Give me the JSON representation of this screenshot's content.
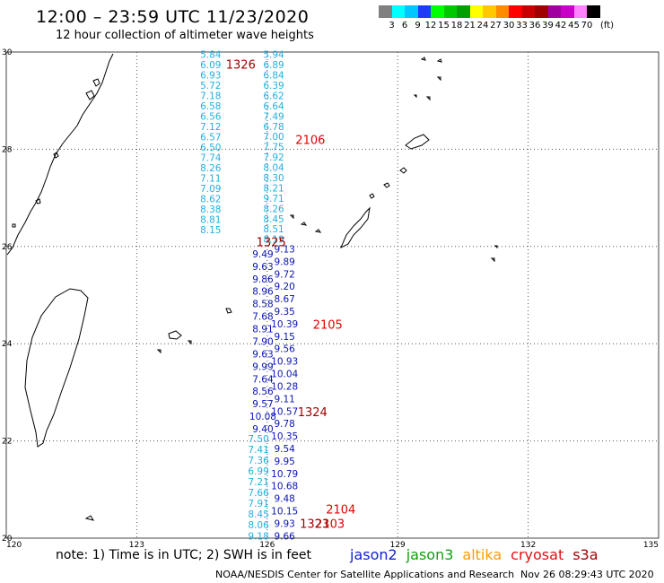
{
  "title": "12:00 – 23:59 UTC 11/23/2020",
  "subtitle": "12 hour collection of altimeter wave heights",
  "legend": {
    "colors": [
      "#808080",
      "#00ffff",
      "#00c8ff",
      "#1e3cff",
      "#00ff00",
      "#00c800",
      "#00a000",
      "#ffff00",
      "#ffc800",
      "#ff8c00",
      "#ff0000",
      "#c80000",
      "#a00000",
      "#a000a0",
      "#c800c8",
      "#ff82ff",
      "#000000"
    ],
    "labels": [
      "3",
      "6",
      "9",
      "12",
      "15",
      "18",
      "21",
      "24",
      "27",
      "30",
      "33",
      "36",
      "39",
      "42",
      "45",
      "70"
    ],
    "unit": "(ft)"
  },
  "axes": {
    "lon_ticks": [
      "120",
      "123",
      "126",
      "129",
      "132",
      "135"
    ],
    "lat_ticks": [
      "30",
      "28",
      "26",
      "24",
      "22",
      "20"
    ]
  },
  "tracks": [
    {
      "color": "#22b0e0",
      "lon": 124.7,
      "lat0": 29.95,
      "lat1": 26.35,
      "values": [
        "5.84",
        "6.09",
        "6.93",
        "5.72",
        "7.18",
        "6.58",
        "6.56",
        "7.12",
        "6.57",
        "6.50",
        "7.74",
        "8.26",
        "7.11",
        "7.09",
        "8.62",
        "8.38",
        "8.81",
        "8.15"
      ]
    },
    {
      "color": "#22b0e0",
      "lon": 126.15,
      "lat0": 29.95,
      "lat1": 26.15,
      "values": [
        "5.94",
        "6.89",
        "6.84",
        "6.39",
        "6.62",
        "6.64",
        "7.49",
        "6.78",
        "7.00",
        "7.75",
        "7.92",
        "8.04",
        "8.30",
        "8.21",
        "9.71",
        "8.26",
        "8.45",
        "8.51",
        "8.19"
      ]
    },
    {
      "color": "#0a14b4",
      "lon": 125.9,
      "lat0": 25.85,
      "lat1": 22.25,
      "values": [
        "9.49",
        "9.63",
        "9.86",
        "8.96",
        "8.58",
        "7.68",
        "8.91",
        "7.90",
        "9.63",
        "9.99",
        "7.64",
        "8.56",
        "9.57",
        "10.08",
        "9.40"
      ]
    },
    {
      "color": "#0a14b4",
      "lon": 126.4,
      "lat0": 25.95,
      "lat1": 20.05,
      "values": [
        "9.13",
        "9.89",
        "9.72",
        "9.20",
        "8.67",
        "9.35",
        "10.39",
        "9.15",
        "9.56",
        "10.93",
        "10.04",
        "10.28",
        "9.11",
        "10.57",
        "9.78",
        "10.35",
        "9.54",
        "9.95",
        "10.79",
        "10.68",
        "9.48",
        "10.15",
        "9.93",
        "9.66"
      ]
    },
    {
      "color": "#22b0e0",
      "lon": 125.8,
      "lat0": 22.05,
      "lat1": 20.05,
      "values": [
        "7.50",
        "7.41",
        "7.36",
        "6.99",
        "7.21",
        "7.66",
        "7.91",
        "8.45",
        "8.06",
        "9.18"
      ]
    }
  ],
  "passes": [
    {
      "label": "1326",
      "color": "#a00000",
      "lon": 125.05,
      "lat": 29.75
    },
    {
      "label": "2106",
      "color": "#e00000",
      "lon": 126.65,
      "lat": 28.2
    },
    {
      "label": "1325",
      "color": "#a00000",
      "lon": 125.75,
      "lat": 26.1
    },
    {
      "label": "2105",
      "color": "#e00000",
      "lon": 127.05,
      "lat": 24.4
    },
    {
      "label": "1324",
      "color": "#a00000",
      "lon": 126.7,
      "lat": 22.6
    },
    {
      "label": "2104",
      "color": "#e00000",
      "lon": 127.35,
      "lat": 20.6
    },
    {
      "label": "2103",
      "color": "#e00000",
      "lon": 127.1,
      "lat": 20.3
    },
    {
      "label": "1323",
      "color": "#a00000",
      "lon": 126.75,
      "lat": 20.3
    }
  ],
  "note": "note:  1) Time is in UTC;  2) SWH is in feet",
  "satellites": [
    {
      "name": "jason2",
      "color": "#1020d0"
    },
    {
      "name": "jason3",
      "color": "#10a010"
    },
    {
      "name": "altika",
      "color": "#ff9a00"
    },
    {
      "name": "cryosat",
      "color": "#e01010"
    },
    {
      "name": "s3a",
      "color": "#a00000"
    }
  ],
  "footer": "NOAA/NESDIS Center for Satellite Applications and Research",
  "timestamp": "Nov 26 08:29:43 UTC 2020"
}
